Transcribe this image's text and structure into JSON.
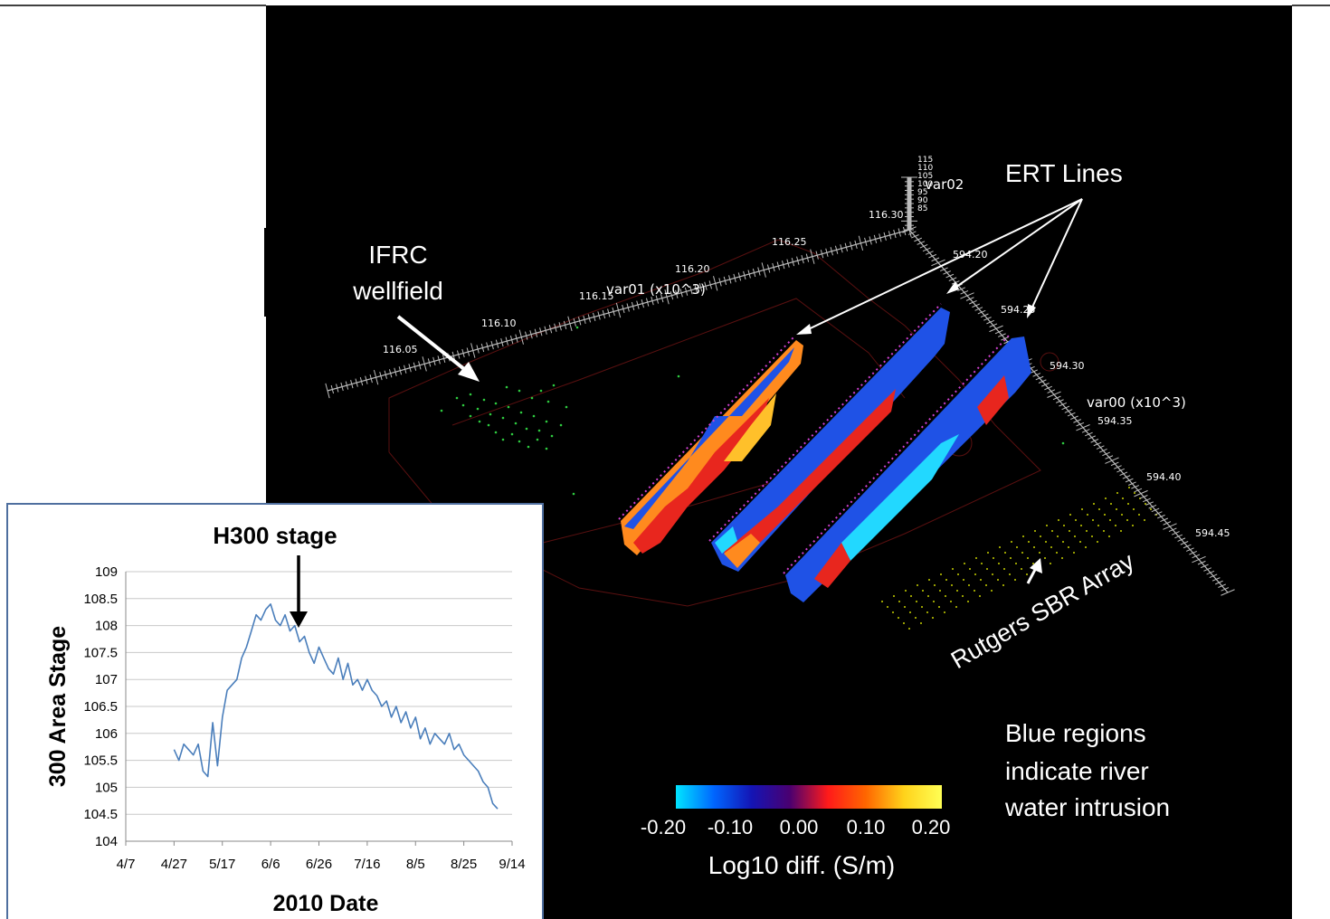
{
  "scene": {
    "annotations": {
      "ifrc_line1": "IFRC",
      "ifrc_line2": "wellfield",
      "ert": "ERT Lines",
      "rutgers": "Rutgers SBR Array",
      "blue_line1": "Blue regions",
      "blue_line2": "indicate river",
      "blue_line3": "water intrusion"
    },
    "axes": {
      "var01": {
        "label": "var01 (x10^3)",
        "ticks": [
          "116.05",
          "116.10",
          "116.15",
          "116.20",
          "116.25",
          "116.30"
        ]
      },
      "var00": {
        "label": "var00 (x10^3)",
        "ticks": [
          "594.20",
          "594.25",
          "594.30",
          "594.35",
          "594.40",
          "594.45"
        ]
      },
      "var02": {
        "label": "var02",
        "ticks": [
          "115",
          "110",
          "105",
          "100",
          "95",
          "90",
          "85"
        ]
      }
    },
    "colorbar": {
      "label": "Log10 diff. (S/m)",
      "ticks": [
        "-0.20",
        "-0.10",
        "0.00",
        "0.10",
        "0.20"
      ],
      "colors": [
        "#00e5ff",
        "#0066ff",
        "#1414b4",
        "#4a0070",
        "#ff1a1a",
        "#ff6600",
        "#ffd21a",
        "#ffff55"
      ]
    },
    "palette": {
      "blue": "#1f52e6",
      "cyan": "#22d8ff",
      "red": "#e8261e",
      "orange": "#ff8a1e",
      "yellow": "#ffc02a"
    }
  },
  "chart_data": {
    "type": "line",
    "title": "H300 stage",
    "xlabel": "2010 Date",
    "ylabel": "300 Area Stage",
    "ylim": [
      104,
      109
    ],
    "yticks": [
      "109",
      "108.5",
      "108",
      "107.5",
      "107",
      "106.5",
      "106",
      "105.5",
      "105",
      "104.5",
      "104"
    ],
    "xticks": [
      "4/7",
      "4/27",
      "5/17",
      "6/6",
      "6/26",
      "7/16",
      "8/5",
      "8/25",
      "9/14"
    ],
    "grid": true,
    "line_color": "#4a7ebb",
    "series": [
      {
        "x": [
          "2010-04-27",
          "2010-04-29",
          "2010-05-01",
          "2010-05-03",
          "2010-05-05",
          "2010-05-07",
          "2010-05-09",
          "2010-05-11",
          "2010-05-13",
          "2010-05-15",
          "2010-05-17",
          "2010-05-19",
          "2010-05-21",
          "2010-05-23",
          "2010-05-25",
          "2010-05-27",
          "2010-05-29",
          "2010-05-31",
          "2010-06-02",
          "2010-06-04",
          "2010-06-06",
          "2010-06-08",
          "2010-06-10",
          "2010-06-12",
          "2010-06-14",
          "2010-06-16",
          "2010-06-18",
          "2010-06-20",
          "2010-06-22",
          "2010-06-24",
          "2010-06-26",
          "2010-06-28",
          "2010-06-30",
          "2010-07-02",
          "2010-07-04",
          "2010-07-06",
          "2010-07-08",
          "2010-07-10",
          "2010-07-12",
          "2010-07-14",
          "2010-07-16",
          "2010-07-18",
          "2010-07-20",
          "2010-07-22",
          "2010-07-24",
          "2010-07-26",
          "2010-07-28",
          "2010-07-30",
          "2010-08-01",
          "2010-08-03",
          "2010-08-05",
          "2010-08-07",
          "2010-08-09",
          "2010-08-11",
          "2010-08-13",
          "2010-08-15",
          "2010-08-17",
          "2010-08-19",
          "2010-08-21",
          "2010-08-23",
          "2010-08-25",
          "2010-08-27",
          "2010-08-29",
          "2010-08-31",
          "2010-09-02",
          "2010-09-04",
          "2010-09-06",
          "2010-09-08"
        ],
        "y": [
          105.7,
          105.5,
          105.8,
          105.7,
          105.6,
          105.8,
          105.3,
          105.2,
          106.2,
          105.4,
          106.3,
          106.8,
          106.9,
          107.0,
          107.4,
          107.6,
          107.9,
          108.2,
          108.1,
          108.3,
          108.4,
          108.1,
          108.0,
          108.2,
          107.9,
          108.0,
          107.7,
          107.8,
          107.5,
          107.3,
          107.6,
          107.4,
          107.2,
          107.1,
          107.4,
          107.0,
          107.3,
          106.9,
          107.0,
          106.8,
          107.0,
          106.8,
          106.7,
          106.5,
          106.6,
          106.3,
          106.5,
          106.2,
          106.4,
          106.1,
          106.3,
          105.9,
          106.1,
          105.8,
          106.0,
          105.9,
          105.8,
          106.0,
          105.7,
          105.8,
          105.6,
          105.5,
          105.4,
          105.3,
          105.1,
          105.0,
          104.7,
          104.6
        ]
      }
    ]
  }
}
